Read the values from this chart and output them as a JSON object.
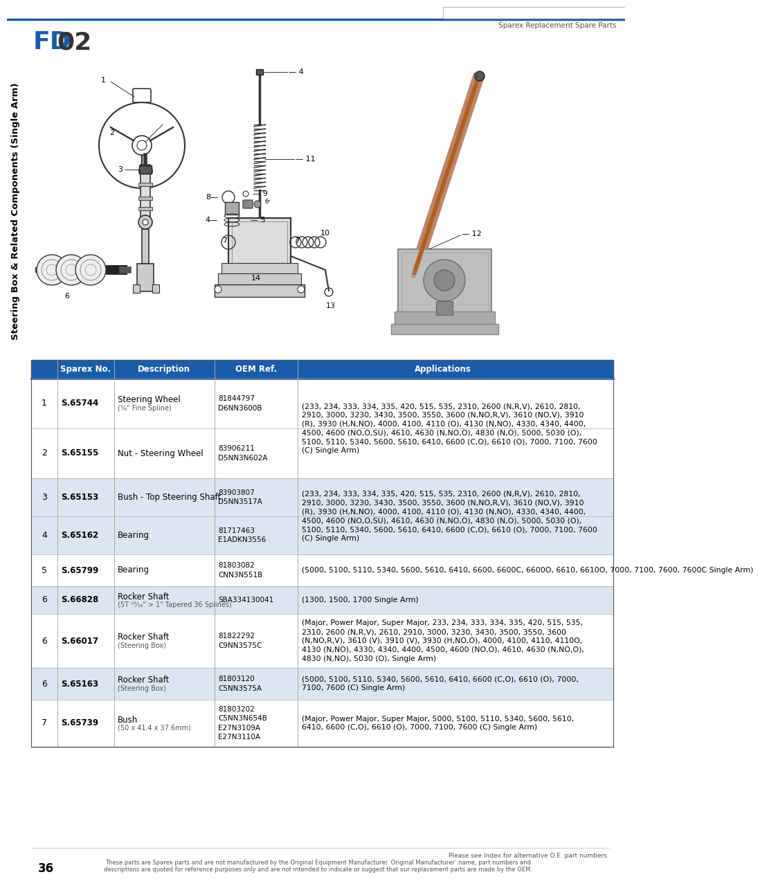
{
  "page_title_fd": "FD",
  "page_title_02": "02",
  "page_subtitle": "Sparex Replacement Spare Parts",
  "page_number": "36",
  "sidebar_text": "Steering Box & Related Components (Single Arm)",
  "header_color": "#1a5ca8",
  "table_header_bg": "#1a5ca8",
  "table_alt_bg": "#dce6f1",
  "table_white_bg": "#ffffff",
  "footer_note": "Please see Index for alternative O.E. part numbers.",
  "footer_text": "These parts are Sparex parts and are not manufactured by the Original Equipment Manufacturer. Original Manufacturer’ name, part numbers and\ndescriptions are quoted for reference purposes only and are not intended to indicate or suggest that our replacement parts are made by the OEM.",
  "row_data": [
    {
      "num": "1",
      "sparex": "S.65744",
      "desc": "Steering Wheel",
      "desc_sub": "(⁵⁄₈\" Fine Spline)",
      "oem": "81844797\nD6NN3600B",
      "app": "(233, 234, 333, 334, 335, 420, 515, 535, 2310, 2600 (N,R,V), 2610, 2810,\n2910, 3000, 3230, 3430, 3500, 3550, 3600 (N,NO,R,V), 3610 (NO,V), 3910\n(R), 3930 (H,N,NO), 4000, 4100, 4110 (O), 4130 (N,NO), 4330, 4340, 4400,\n4500, 4600 (NO,O,SU), 4610, 4630 (N,NO,O), 4830 (N,O), 5000, 5030 (O),\n5100, 5110, 5340, 5600, 5610, 6410, 6600 (C,O), 6610 (O), 7000, 7100, 7600\n(C) Single Arm)",
      "alt": false,
      "merged_top": true
    },
    {
      "num": "2",
      "sparex": "S.65155",
      "desc": "Nut - Steering Wheel",
      "desc_sub": "",
      "oem": "83906211\nD5NN3N602A",
      "app": "",
      "alt": false,
      "merged_top": false
    },
    {
      "num": "3",
      "sparex": "S.65153",
      "desc": "Bush - Top Steering Shaft",
      "desc_sub": "",
      "oem": "83903807\nD5NN3517A",
      "app": "(233, 234, 333, 334, 335, 420, 515, 535, 2310, 2600 (N,R,V), 2610, 2810,\n2910, 3000, 3230, 3430, 3500, 3550, 3600 (N,NO,R,V), 3610 (NO,V), 3910\n(R), 3930 (H,N,NO), 4000, 4100, 4110 (O), 4130 (N,NO), 4330, 4340, 4400,\n4500, 4600 (NO,O,SU), 4610, 4630 (N,NO,O), 4830 (N,O), 5000, 5030 (O),\n5100, 5110, 5340, 5600, 5610, 6410, 6600 (C,O), 6610 (O), 7000, 7100, 7600\n(C) Single Arm)",
      "alt": true,
      "merged_top": true
    },
    {
      "num": "4",
      "sparex": "S.65162",
      "desc": "Bearing",
      "desc_sub": "",
      "oem": "81717463\nE1ADKN3556",
      "app": "",
      "alt": true,
      "merged_top": false
    },
    {
      "num": "5",
      "sparex": "S.65799",
      "desc": "Bearing",
      "desc_sub": "",
      "oem": "81803082\nCNN3N551B",
      "app": "(5000, 5100, 5110, 5340, 5600, 5610, 6410, 6600, 6600C, 6600O, 6610, 6610O, 7000, 7100, 7600, 7600C Single Arm)",
      "alt": false,
      "merged_top": false
    },
    {
      "num": "6",
      "sparex": "S.66828",
      "desc": "Rocker Shaft",
      "desc_sub": "(5T ¹⁵⁄₁₆\" > 1\" Tapered 36 Splines)",
      "oem": "SBA334130041",
      "app": "(1300, 1500, 1700 Single Arm)",
      "alt": true,
      "merged_top": false
    },
    {
      "num": "6",
      "sparex": "S.66017",
      "desc": "Rocker Shaft",
      "desc_sub": "(Steering Box)",
      "oem": "81822292\nC9NN3575C",
      "app": "(Major, Power Major, Super Major, 233, 234, 333, 334, 335, 420, 515, 535,\n2310, 2600 (N,R,V), 2610, 2910, 3000, 3230, 3430, 3500, 3550, 3600\n(N,NO,R,V), 3610 (V), 3910 (V), 3930 (H,NO,O), 4000, 4100, 4110, 4110O,\n4130 (N,NO), 4330, 4340, 4400, 4500, 4600 (NO,O), 4610, 4630 (N,NO,O),\n4830 (N,NO), 5030 (O), Single Arm)",
      "alt": false,
      "merged_top": false
    },
    {
      "num": "6",
      "sparex": "S.65163",
      "desc": "Rocker Shaft",
      "desc_sub": "(Steering Box)",
      "oem": "81803120\nC5NN3575A",
      "app": "(5000, 5100, 5110, 5340, 5600, 5610, 6410, 6600 (C,O), 6610 (O), 7000,\n7100, 7600 (C) Single Arm)",
      "alt": true,
      "merged_top": false
    },
    {
      "num": "7",
      "sparex": "S.65739",
      "desc": "Bush",
      "desc_sub": "(50 x 41.4 x 37.6mm)",
      "oem": "81803202\nC5NN3N654B\nE27N3109A\nE27N3110A",
      "app": "(Major, Power Major, Super Major, 5000, 5100, 5110, 5340, 5600, 5610,\n6410, 6600 (C,O), 6610 (O), 7000, 7100, 7600 (C) Single Arm)",
      "alt": false,
      "merged_top": false
    }
  ]
}
